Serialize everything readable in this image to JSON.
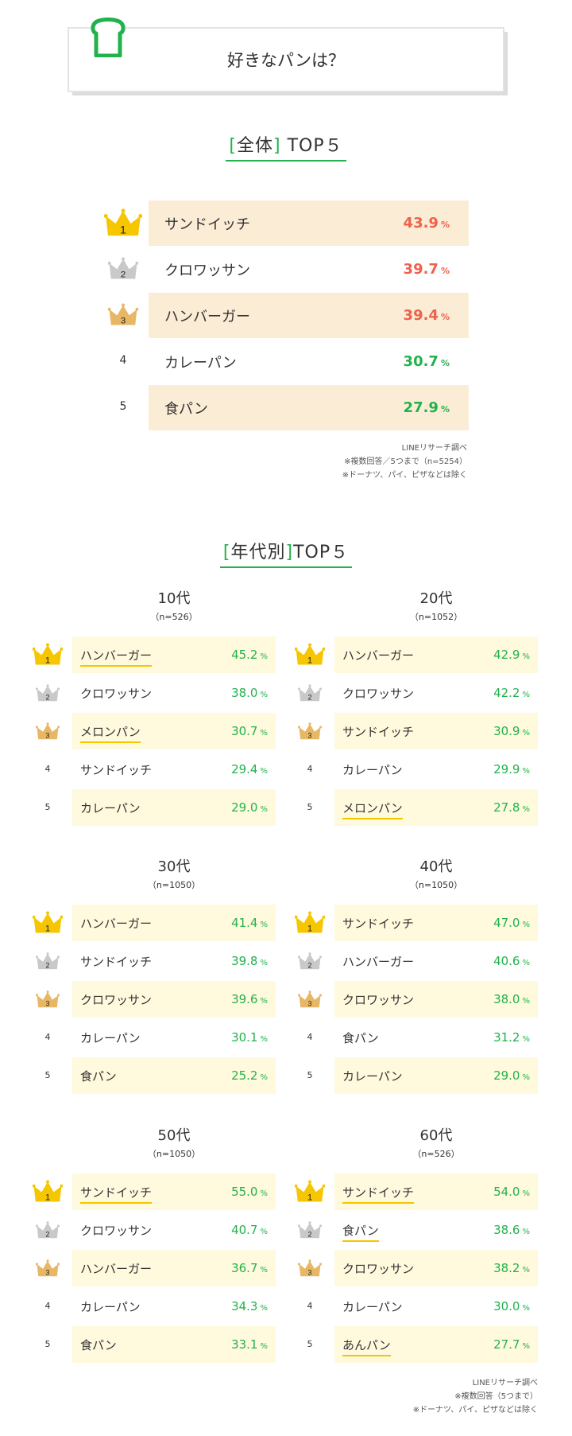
{
  "header": {
    "title": "好きなパンは？"
  },
  "colors": {
    "green": "#22b24c",
    "red": "#f0604a",
    "gold": "#f6c600",
    "silver": "#c9c9c9",
    "bronze": "#e8b765",
    "shade_overall": "#fbecd6",
    "shade_age": "#fff9dd"
  },
  "overall": {
    "title_prefix": "[",
    "title_word": "全体",
    "title_suffix": "]",
    "title_rest": "TOP５",
    "pct_unit": "%",
    "rows": [
      {
        "rank": "1",
        "name": "サンドイッチ",
        "pct": "43.9"
      },
      {
        "rank": "2",
        "name": "クロワッサン",
        "pct": "39.7"
      },
      {
        "rank": "3",
        "name": "ハンバーガー",
        "pct": "39.4"
      },
      {
        "rank": "4",
        "name": "カレーパン",
        "pct": "30.7"
      },
      {
        "rank": "5",
        "name": "食パン",
        "pct": "27.9"
      }
    ],
    "notes": [
      "LINEリサーチ調べ",
      "※複数回答／5つまで（n=5254）",
      "※ドーナツ、パイ、ピザなどは除く"
    ]
  },
  "byage": {
    "title_prefix": "[",
    "title_word": "年代別",
    "title_suffix": "]",
    "title_rest": "TOP５",
    "pct_unit": "%",
    "groups": [
      {
        "age": "10代",
        "n": "（n=526）",
        "rows": [
          {
            "rank": "1",
            "name": "ハンバーガー",
            "pct": "45.2"
          },
          {
            "rank": "2",
            "name": "クロワッサン",
            "pct": "38.0"
          },
          {
            "rank": "3",
            "name": "メロンパン",
            "pct": "30.7"
          },
          {
            "rank": "4",
            "name": "サンドイッチ",
            "pct": "29.4"
          },
          {
            "rank": "5",
            "name": "カレーパン",
            "pct": "29.0"
          }
        ]
      },
      {
        "age": "20代",
        "n": "（n=1052）",
        "rows": [
          {
            "rank": "1",
            "name": "ハンバーガー",
            "pct": "42.9"
          },
          {
            "rank": "2",
            "name": "クロワッサン",
            "pct": "42.2"
          },
          {
            "rank": "3",
            "name": "サンドイッチ",
            "pct": "30.9"
          },
          {
            "rank": "4",
            "name": "カレーパン",
            "pct": "29.9"
          },
          {
            "rank": "5",
            "name": "メロンパン",
            "pct": "27.8"
          }
        ]
      },
      {
        "age": "30代",
        "n": "（n=1050）",
        "rows": [
          {
            "rank": "1",
            "name": "ハンバーガー",
            "pct": "41.4"
          },
          {
            "rank": "2",
            "name": "サンドイッチ",
            "pct": "39.8"
          },
          {
            "rank": "3",
            "name": "クロワッサン",
            "pct": "39.6"
          },
          {
            "rank": "4",
            "name": "カレーパン",
            "pct": "30.1"
          },
          {
            "rank": "5",
            "name": "食パン",
            "pct": "25.2"
          }
        ]
      },
      {
        "age": "40代",
        "n": "（n=1050）",
        "rows": [
          {
            "rank": "1",
            "name": "サンドイッチ",
            "pct": "47.0"
          },
          {
            "rank": "2",
            "name": "ハンバーガー",
            "pct": "40.6"
          },
          {
            "rank": "3",
            "name": "クロワッサン",
            "pct": "38.0"
          },
          {
            "rank": "4",
            "name": "食パン",
            "pct": "31.2"
          },
          {
            "rank": "5",
            "name": "カレーパン",
            "pct": "29.0"
          }
        ]
      },
      {
        "age": "50代",
        "n": "（n=1050）",
        "rows": [
          {
            "rank": "1",
            "name": "サンドイッチ",
            "pct": "55.0"
          },
          {
            "rank": "2",
            "name": "クロワッサン",
            "pct": "40.7"
          },
          {
            "rank": "3",
            "name": "ハンバーガー",
            "pct": "36.7"
          },
          {
            "rank": "4",
            "name": "カレーパン",
            "pct": "34.3"
          },
          {
            "rank": "5",
            "name": "食パン",
            "pct": "33.1"
          }
        ]
      },
      {
        "age": "60代",
        "n": "（n=526）",
        "rows": [
          {
            "rank": "1",
            "name": "サンドイッチ",
            "pct": "54.0"
          },
          {
            "rank": "2",
            "name": "食パン",
            "pct": "38.6"
          },
          {
            "rank": "3",
            "name": "クロワッサン",
            "pct": "38.2"
          },
          {
            "rank": "4",
            "name": "カレーパン",
            "pct": "30.0"
          },
          {
            "rank": "5",
            "name": "あんパン",
            "pct": "27.7"
          }
        ]
      }
    ],
    "notes": [
      "LINEリサーチ調べ",
      "※複数回答（5つまで）",
      "※ドーナツ、パイ、ピザなどは除く"
    ]
  }
}
